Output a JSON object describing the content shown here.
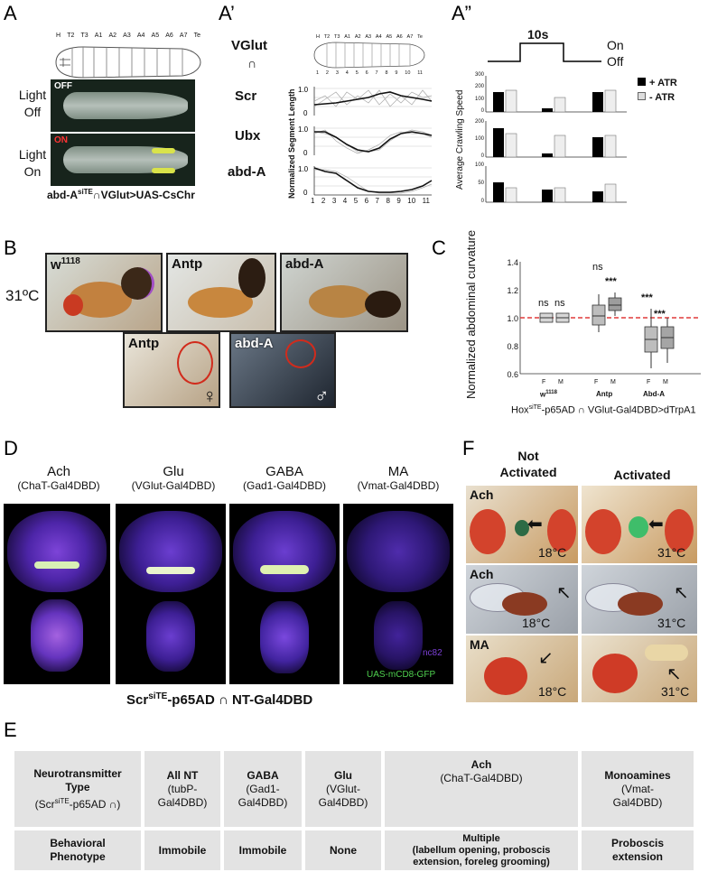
{
  "panels": {
    "A": "A",
    "A1": "A’",
    "A2": "A”",
    "B": "B",
    "C": "C",
    "D": "D",
    "E": "E",
    "F": "F"
  },
  "panelA": {
    "segments": [
      "H",
      "T2",
      "T3",
      "A1",
      "A2",
      "A3",
      "A4",
      "A5",
      "A6",
      "A7",
      "Te"
    ],
    "light_off_label": "Light\nOff",
    "light_on_label": "Light\nOn",
    "off_tag": "OFF",
    "on_tag": "ON",
    "genotype_pre": "abd-A",
    "genotype_sup": "siTE",
    "genotype_post": "∩VGlut>UAS-CsChr"
  },
  "panelA1": {
    "rows": [
      "VGlut",
      "∩",
      "Scr",
      "Ubx",
      "abd-A"
    ],
    "ylabel": "Normalized Segment Length",
    "segments": [
      "H",
      "T2",
      "T3",
      "A1",
      "A2",
      "A3",
      "A4",
      "A5",
      "A6",
      "A7",
      "Te"
    ],
    "seg_numbers": [
      "1",
      "2",
      "3",
      "4",
      "5",
      "6",
      "7",
      "8",
      "9",
      "10",
      "11"
    ],
    "ytick_top": "1.0",
    "ytick_bottom": "0",
    "xticks": [
      "1",
      "2",
      "3",
      "4",
      "5",
      "6",
      "7",
      "8",
      "9",
      "10",
      "11"
    ]
  },
  "panelA2": {
    "timer": "10s",
    "on": "On",
    "off": "Off",
    "ylabel": "Average Crawling Speed",
    "legend_atr_plus": "+ ATR",
    "legend_atr_minus": "- ATR",
    "yticks_top": [
      "300",
      "200",
      "100",
      "0"
    ],
    "yticks_mid": [
      "200",
      "100",
      "0"
    ],
    "yticks_bot": [
      "100",
      "50",
      "0"
    ]
  },
  "panelB": {
    "temp": "31ºC",
    "w_label": "w",
    "w_sup": "1118",
    "antp": "Antp",
    "abda": "abd-A",
    "female": "♀",
    "male": "♂"
  },
  "chart_data": {
    "type": "box",
    "ylabel": "Normalized abdominal curvature",
    "yticks": [
      "1.4",
      "1.2",
      "1.0",
      "0.8",
      "0.6"
    ],
    "ylim": [
      0.6,
      1.4
    ],
    "groups": [
      {
        "name": "w1118",
        "sexes": [
          "F",
          "M"
        ],
        "medians": [
          1.0,
          1.0
        ],
        "sig": [
          "ns",
          "ns"
        ]
      },
      {
        "name": "Antp",
        "sexes": [
          "F",
          "M"
        ],
        "medians": [
          1.03,
          1.11
        ],
        "sig": [
          "ns",
          "***"
        ]
      },
      {
        "name": "Abd-A",
        "sexes": [
          "F",
          "M"
        ],
        "medians": [
          0.85,
          0.88
        ],
        "sig": [
          "***",
          "***"
        ]
      }
    ],
    "reference_line": 1.0,
    "xlabel_pre": "Hox",
    "xlabel_sup": "siTE",
    "xlabel_post": "-p65AD ∩ VGlut-Gal4DBD>dTrpA1",
    "group_w": "w",
    "group_w_sup": "1118",
    "group_antp": "Antp",
    "group_abda": "Abd-A",
    "sex_f": "F",
    "sex_m": "M",
    "ns": "ns",
    "stars": "***"
  },
  "panelD": {
    "columns": [
      {
        "title": "Ach",
        "sub": "(ChaT-Gal4DBD)"
      },
      {
        "title": "Glu",
        "sub": "(VGlut-Gal4DBD)"
      },
      {
        "title": "GABA",
        "sub": "(Gad1-Gal4DBD)"
      },
      {
        "title": "MA",
        "sub": "(Vmat-Gal4DBD)"
      }
    ],
    "nc82": "nc82",
    "gfp": "UAS-mCD8-GFP",
    "caption_pre": "Scr",
    "caption_sup": "siTE",
    "caption_post": "-p65AD ∩ NT-Gal4DBD"
  },
  "panelF": {
    "not_activated": "Not\nActivated",
    "activated": "Activated",
    "rows": [
      {
        "label": "Ach",
        "t1": "18°C",
        "t2": "31°C"
      },
      {
        "label": "Ach",
        "t1": "18°C",
        "t2": "31°C"
      },
      {
        "label": "MA",
        "t1": "18°C",
        "t2": "31°C"
      }
    ]
  },
  "panelE": {
    "header": [
      {
        "main": "Neurotransmitter\nType",
        "sub_pre": "(Scr",
        "sub_sup": "siTE",
        "sub_post": "-p65AD ∩)"
      },
      {
        "main": "All NT",
        "sub": "(tubP-\nGal4DBD)"
      },
      {
        "main": "GABA",
        "sub": "(Gad1-\nGal4DBD)"
      },
      {
        "main": "Glu",
        "sub": "(VGlut-\nGal4DBD)"
      },
      {
        "main": "Ach",
        "sub": "(ChaT-Gal4DBD)"
      },
      {
        "main": "Monoamines",
        "sub": "(Vmat-\nGal4DBD)"
      }
    ],
    "row": [
      "Behavioral\nPhenotype",
      "Immobile",
      "Immobile",
      "None",
      "Multiple\n(labellum opening, proboscis\nextension, foreleg grooming)",
      "Proboscis\nextension"
    ]
  }
}
